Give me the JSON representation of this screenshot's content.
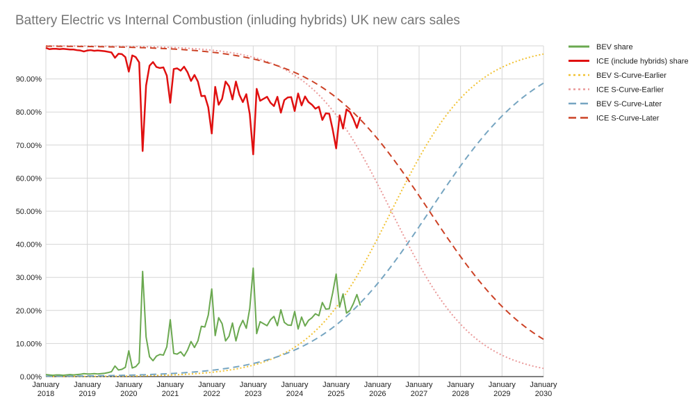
{
  "chart_data": {
    "type": "line",
    "title": "Battery Electric vs Internal Combustion (inluding hybrids) UK new cars sales",
    "xlabel": "",
    "ylabel": "",
    "ylim": [
      0,
      100
    ],
    "xlim": [
      "2018-01",
      "2030-01"
    ],
    "y_ticks": [
      "0.00%",
      "10.00%",
      "20.00%",
      "30.00%",
      "40.00%",
      "50.00%",
      "60.00%",
      "70.00%",
      "80.00%",
      "90.00%"
    ],
    "x_ticks": [
      {
        "month": "January",
        "year": "2018"
      },
      {
        "month": "January",
        "year": "2019"
      },
      {
        "month": "January",
        "year": "2020"
      },
      {
        "month": "January",
        "year": "2021"
      },
      {
        "month": "January",
        "year": "2022"
      },
      {
        "month": "January",
        "year": "2023"
      },
      {
        "month": "January",
        "year": "2024"
      },
      {
        "month": "January",
        "year": "2025"
      },
      {
        "month": "January",
        "year": "2026"
      },
      {
        "month": "January",
        "year": "2027"
      },
      {
        "month": "January",
        "year": "2028"
      },
      {
        "month": "January",
        "year": "2029"
      },
      {
        "month": "January",
        "year": "2030"
      }
    ],
    "grid": true,
    "legend_position": "right",
    "series": [
      {
        "name": "BEV share",
        "color": "#6aa84f",
        "style": "solid",
        "width": 2,
        "start": "2018-01",
        "values": [
          0.6,
          0.5,
          0.4,
          0.5,
          0.5,
          0.4,
          0.5,
          0.6,
          0.5,
          0.6,
          0.7,
          0.9,
          0.8,
          0.8,
          0.9,
          0.8,
          0.9,
          1.0,
          1.2,
          1.5,
          3.2,
          2.0,
          2.2,
          2.8,
          7.8,
          2.6,
          3.0,
          4.2,
          31.8,
          12.0,
          6.0,
          4.8,
          6.2,
          6.7,
          6.5,
          9.0,
          17.2,
          7.0,
          6.8,
          7.5,
          6.2,
          8.0,
          10.6,
          8.8,
          10.8,
          15.2,
          15.0,
          18.6,
          26.5,
          12.4,
          17.8,
          16.0,
          10.8,
          12.2,
          16.2,
          10.8,
          14.8,
          17.0,
          14.6,
          20.6,
          32.8,
          13.0,
          16.6,
          16.0,
          15.4,
          17.2,
          18.2,
          15.4,
          20.2,
          16.4,
          15.6,
          15.5,
          19.7,
          14.4,
          18.0,
          15.3,
          17.0,
          17.8,
          19.0,
          18.4,
          22.4,
          20.4,
          20.5,
          25.3,
          31.0,
          21.0,
          25.0,
          19.2,
          20.0,
          22.1,
          24.8,
          21.5
        ]
      },
      {
        "name": "ICE (include hybrids) share",
        "color": "#e01010",
        "style": "solid",
        "width": 2.5,
        "start": "2018-01",
        "values": [
          99.4,
          99.0,
          99.1,
          99.1,
          99.0,
          99.1,
          99.0,
          98.9,
          98.9,
          98.7,
          98.6,
          98.3,
          98.6,
          98.7,
          98.5,
          98.6,
          98.5,
          98.4,
          98.2,
          98.0,
          96.4,
          97.6,
          97.5,
          96.6,
          92.2,
          97.1,
          96.6,
          95.0,
          68.2,
          88.0,
          94.0,
          95.1,
          93.6,
          93.3,
          93.5,
          91.0,
          82.8,
          93.0,
          93.2,
          92.5,
          93.7,
          92.0,
          89.4,
          91.2,
          89.2,
          84.8,
          84.9,
          81.4,
          73.5,
          87.6,
          82.2,
          84.0,
          89.2,
          87.8,
          83.8,
          89.2,
          85.2,
          83.0,
          85.4,
          79.4,
          67.2,
          87.0,
          83.4,
          84.0,
          84.6,
          82.8,
          81.8,
          84.6,
          79.8,
          83.6,
          84.4,
          84.5,
          80.3,
          85.6,
          82.0,
          84.7,
          83.0,
          82.2,
          81.0,
          81.6,
          77.6,
          79.6,
          79.5,
          74.7,
          69.0,
          79.0,
          75.0,
          80.8,
          80.0,
          77.9,
          75.2,
          78.5
        ]
      },
      {
        "name": "BEV S-Curve-Earlier",
        "color": "#f1c232",
        "style": "dotted",
        "width": 2,
        "curve": {
          "midpoint_year": 2026.33,
          "slope": 1.0
        }
      },
      {
        "name": "ICE S-Curve-Earlier",
        "color": "#ea9999",
        "style": "dotted",
        "width": 2,
        "curve": {
          "midpoint_year": 2026.33,
          "slope": -1.0
        }
      },
      {
        "name": "BEV S-Curve-Later",
        "color": "#76a5c1",
        "style": "dashed",
        "width": 2,
        "curve": {
          "midpoint_year": 2027.25,
          "slope": 0.75
        }
      },
      {
        "name": "ICE S-Curve-Later",
        "color": "#cc4125",
        "style": "dashed",
        "width": 2,
        "curve": {
          "midpoint_year": 2027.25,
          "slope": -0.75
        }
      }
    ]
  }
}
